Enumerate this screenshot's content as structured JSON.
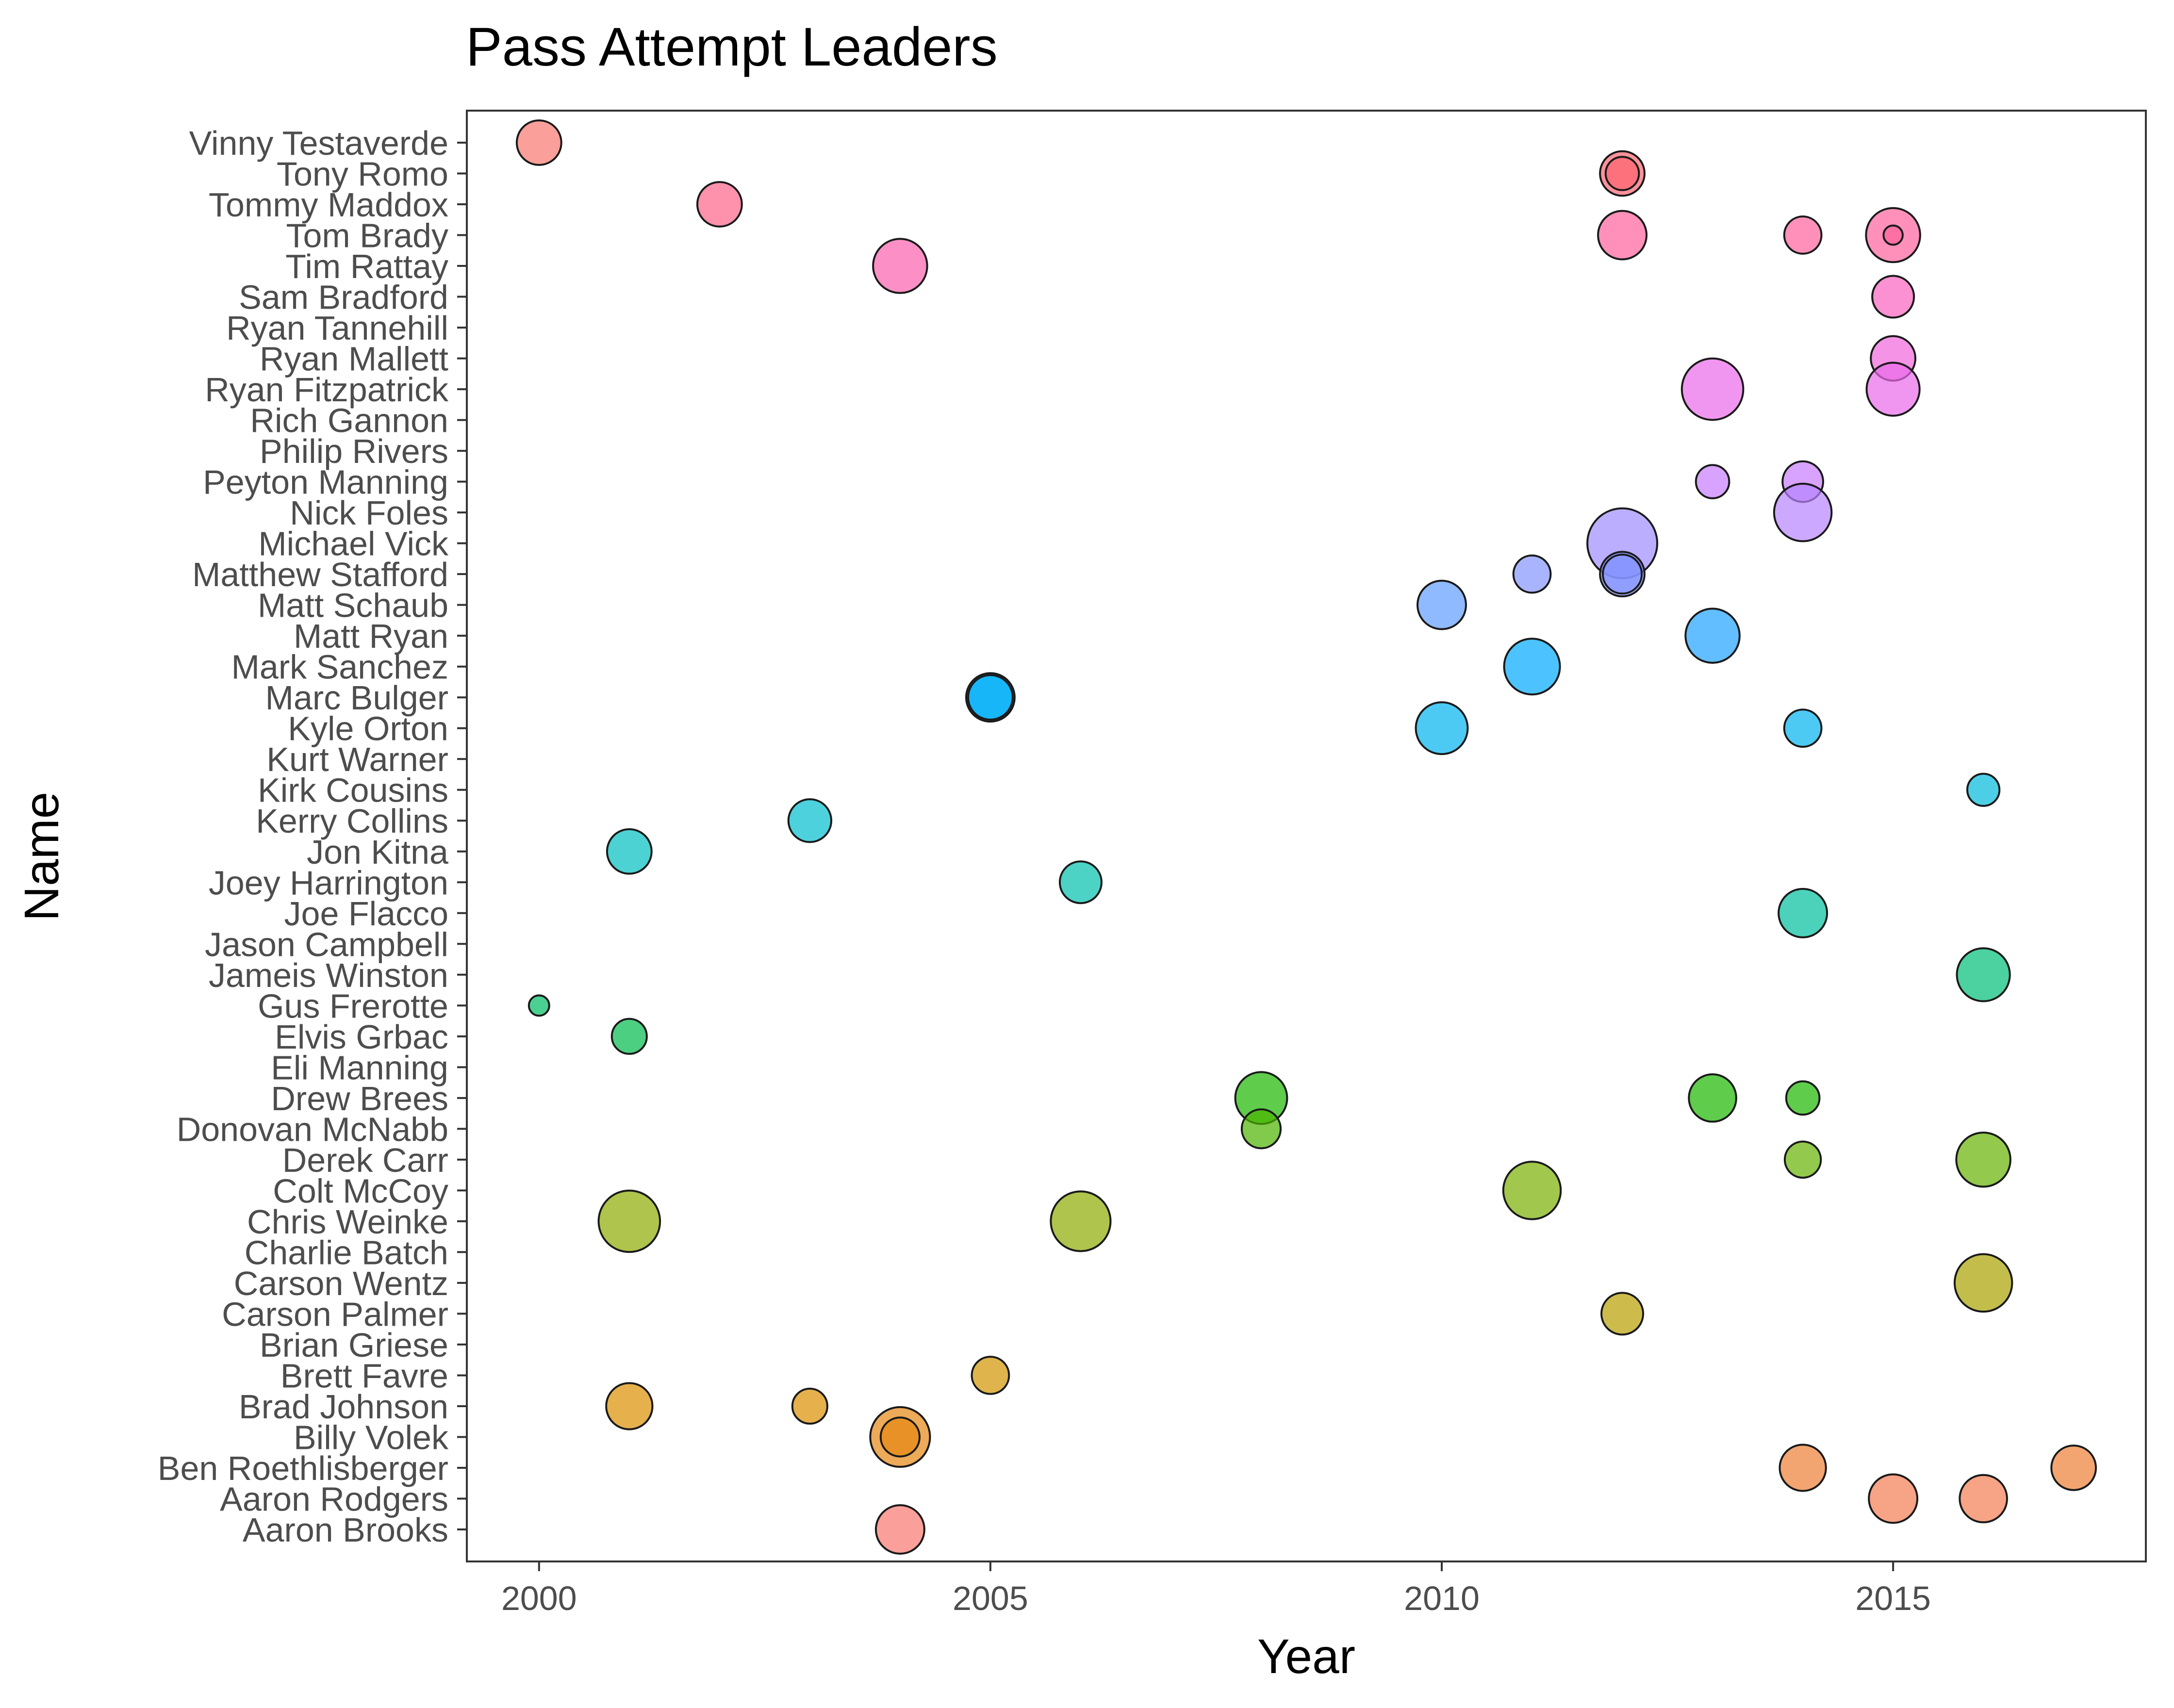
{
  "chart_data": {
    "type": "scatter",
    "title": "Pass Attempt Leaders",
    "xlabel": "Year",
    "ylabel": "Name",
    "xlim": [
      1999.2,
      2017.8
    ],
    "x_ticks": [
      2000,
      2005,
      2010,
      2015
    ],
    "grid": false,
    "legend": "none",
    "categories": [
      "Aaron Brooks",
      "Aaron Rodgers",
      "Ben Roethlisberger",
      "Billy Volek",
      "Brad Johnson",
      "Brett Favre",
      "Brian Griese",
      "Carson Palmer",
      "Carson Wentz",
      "Charlie Batch",
      "Chris Weinke",
      "Colt McCoy",
      "Derek Carr",
      "Donovan McNabb",
      "Drew Brees",
      "Eli Manning",
      "Elvis Grbac",
      "Gus Frerotte",
      "Jameis Winston",
      "Jason Campbell",
      "Joe Flacco",
      "Joey Harrington",
      "Jon Kitna",
      "Kerry Collins",
      "Kirk Cousins",
      "Kurt Warner",
      "Kyle Orton",
      "Marc Bulger",
      "Mark Sanchez",
      "Matt Ryan",
      "Matt Schaub",
      "Matthew Stafford",
      "Michael Vick",
      "Nick Foles",
      "Peyton Manning",
      "Philip Rivers",
      "Rich Gannon",
      "Ryan Fitzpatrick",
      "Ryan Mallett",
      "Ryan Tannehill",
      "Sam Bradford",
      "Tim Rattay",
      "Tom Brady",
      "Tommy Maddox",
      "Tony Romo",
      "Vinny Testaverde"
    ],
    "colors": [
      "#F8766D",
      "#F47C53",
      "#EE7F34",
      "#E68613",
      "#DC8E00",
      "#D19400",
      "#C59A00",
      "#B89F00",
      "#AAA300",
      "#9BA800",
      "#8BAB00",
      "#79AF00",
      "#65B200",
      "#4BB400",
      "#1BB600",
      "#00B92B",
      "#00BA4B",
      "#00BC62",
      "#00BD77",
      "#00BE8A",
      "#00BF9C",
      "#00C0AE",
      "#00BFBF",
      "#00BDCF",
      "#00BBDC",
      "#00B8E7",
      "#00B4F0",
      "#00AFF8",
      "#00A9FF",
      "#1FA2FF",
      "#619CFF",
      "#8494FF",
      "#A08CFF",
      "#B683FF",
      "#C77CFF",
      "#D575FE",
      "#E06EF5",
      "#EA6AEA",
      "#F166DD",
      "#F663CF",
      "#F962BF",
      "#FB61AE",
      "#FD619B",
      "#FE6287",
      "#FC6471",
      "#F8766D"
    ],
    "points": [
      {
        "name": "Vinny Testaverde",
        "x": 2000,
        "size": 0.55
      },
      {
        "name": "Tony Romo",
        "x": 2012,
        "size": 0.55
      },
      {
        "name": "Tony Romo",
        "x": 2012,
        "size": 0.35
      },
      {
        "name": "Tommy Maddox",
        "x": 2002,
        "size": 0.55
      },
      {
        "name": "Tom Brady",
        "x": 2012,
        "size": 0.62
      },
      {
        "name": "Tom Brady",
        "x": 2014,
        "size": 0.42
      },
      {
        "name": "Tom Brady",
        "x": 2015,
        "size": 0.72
      },
      {
        "name": "Tom Brady",
        "x": 2015,
        "size": 0.1
      },
      {
        "name": "Tim Rattay",
        "x": 2004,
        "size": 0.72
      },
      {
        "name": "Sam Bradford",
        "x": 2015,
        "size": 0.5
      },
      {
        "name": "Ryan Mallett",
        "x": 2015,
        "size": 0.55
      },
      {
        "name": "Ryan Fitzpatrick",
        "x": 2013,
        "size": 0.85
      },
      {
        "name": "Ryan Fitzpatrick",
        "x": 2015,
        "size": 0.7
      },
      {
        "name": "Peyton Manning",
        "x": 2013,
        "size": 0.35
      },
      {
        "name": "Peyton Manning",
        "x": 2014,
        "size": 0.48
      },
      {
        "name": "Nick Foles",
        "x": 2014,
        "size": 0.78
      },
      {
        "name": "Michael Vick",
        "x": 2012,
        "size": 1.0
      },
      {
        "name": "Matthew Stafford",
        "x": 2011,
        "size": 0.42
      },
      {
        "name": "Matthew Stafford",
        "x": 2012,
        "size": 0.55
      },
      {
        "name": "Matthew Stafford",
        "x": 2012,
        "size": 0.45
      },
      {
        "name": "Matt Schaub",
        "x": 2010,
        "size": 0.62
      },
      {
        "name": "Matt Ryan",
        "x": 2013,
        "size": 0.72
      },
      {
        "name": "Mark Sanchez",
        "x": 2011,
        "size": 0.75
      },
      {
        "name": "Marc Bulger",
        "x": 2005,
        "size": 0.62
      },
      {
        "name": "Marc Bulger",
        "x": 2005,
        "size": 0.55
      },
      {
        "name": "Kyle Orton",
        "x": 2010,
        "size": 0.68
      },
      {
        "name": "Kyle Orton",
        "x": 2014,
        "size": 0.42
      },
      {
        "name": "Kirk Cousins",
        "x": 2016,
        "size": 0.33
      },
      {
        "name": "Kerry Collins",
        "x": 2003,
        "size": 0.52
      },
      {
        "name": "Jon Kitna",
        "x": 2001,
        "size": 0.55
      },
      {
        "name": "Joey Harrington",
        "x": 2006,
        "size": 0.5
      },
      {
        "name": "Joe Flacco",
        "x": 2014,
        "size": 0.62
      },
      {
        "name": "Jameis Winston",
        "x": 2016,
        "size": 0.7
      },
      {
        "name": "Gus Frerotte",
        "x": 2000,
        "size": 0.12
      },
      {
        "name": "Elvis Grbac",
        "x": 2001,
        "size": 0.38
      },
      {
        "name": "Drew Brees",
        "x": 2008,
        "size": 0.68
      },
      {
        "name": "Drew Brees",
        "x": 2013,
        "size": 0.6
      },
      {
        "name": "Drew Brees",
        "x": 2014,
        "size": 0.35
      },
      {
        "name": "Donovan McNabb",
        "x": 2008,
        "size": 0.45
      },
      {
        "name": "Derek Carr",
        "x": 2014,
        "size": 0.4
      },
      {
        "name": "Derek Carr",
        "x": 2016,
        "size": 0.72
      },
      {
        "name": "Colt McCoy",
        "x": 2011,
        "size": 0.78
      },
      {
        "name": "Chris Weinke",
        "x": 2001,
        "size": 0.85
      },
      {
        "name": "Chris Weinke",
        "x": 2006,
        "size": 0.82
      },
      {
        "name": "Carson Wentz",
        "x": 2016,
        "size": 0.78
      },
      {
        "name": "Carson Palmer",
        "x": 2012,
        "size": 0.5
      },
      {
        "name": "Brett Favre",
        "x": 2005,
        "size": 0.42
      },
      {
        "name": "Brad Johnson",
        "x": 2001,
        "size": 0.58
      },
      {
        "name": "Brad Johnson",
        "x": 2003,
        "size": 0.38
      },
      {
        "name": "Billy Volek",
        "x": 2004,
        "size": 0.82
      },
      {
        "name": "Billy Volek",
        "x": 2004,
        "size": 0.45
      },
      {
        "name": "Ben Roethlisberger",
        "x": 2014,
        "size": 0.58
      },
      {
        "name": "Ben Roethlisberger",
        "x": 2017,
        "size": 0.55
      },
      {
        "name": "Aaron Rodgers",
        "x": 2015,
        "size": 0.62
      },
      {
        "name": "Aaron Rodgers",
        "x": 2016,
        "size": 0.6
      },
      {
        "name": "Aaron Brooks",
        "x": 2004,
        "size": 0.62
      }
    ]
  }
}
